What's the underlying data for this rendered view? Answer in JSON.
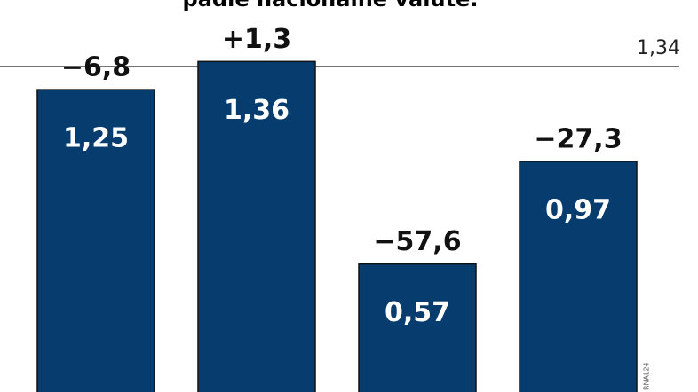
{
  "chart_data": {
    "type": "bar",
    "title": "padle nacionalne valute.",
    "categories": [
      null,
      null,
      null,
      null
    ],
    "values": [
      1.25,
      1.36,
      0.57,
      0.97
    ],
    "value_labels": [
      "1,25",
      "1,36",
      "0,57",
      "0,97"
    ],
    "changes": {
      "values": [
        -6.8,
        1.3,
        -57.6,
        -27.3
      ],
      "value_labels": [
        "−6,8",
        "+1,3",
        "−57,6",
        "−27,3"
      ]
    },
    "reference": {
      "value": 1.34,
      "label": "1,34"
    },
    "color": "#073d6e",
    "ylim": [
      0.07,
      1.6
    ],
    "watermark": "RNAL24"
  }
}
